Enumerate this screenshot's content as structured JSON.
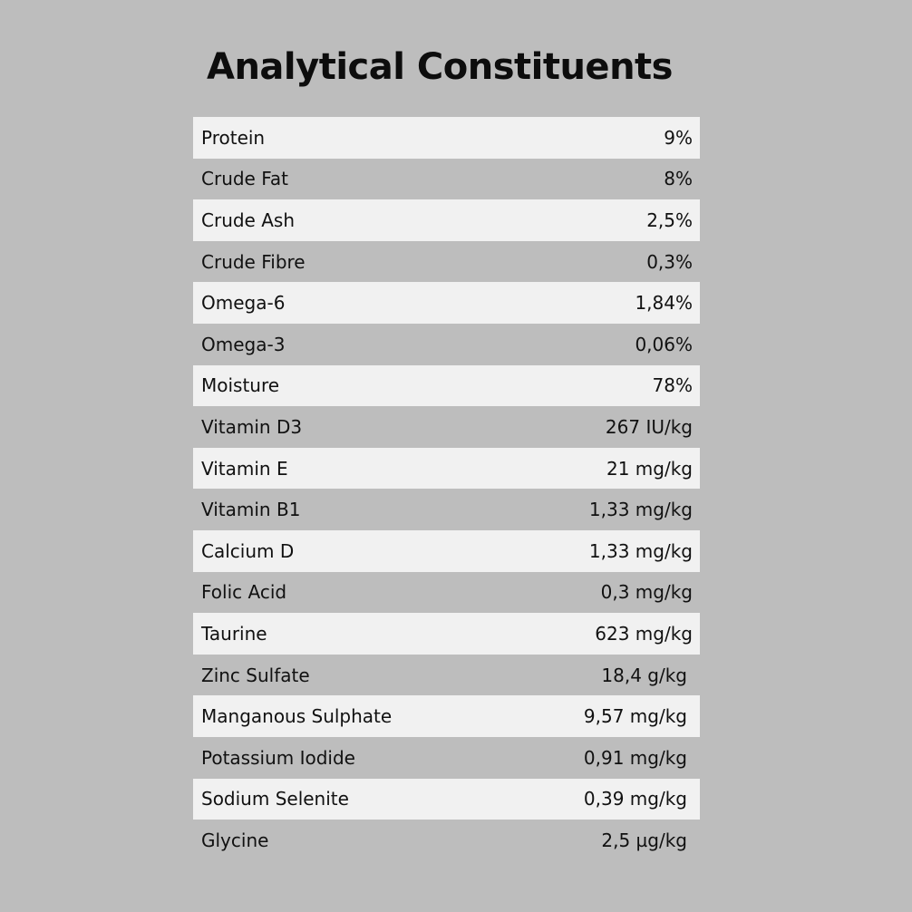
{
  "title": "Analytical Constituents",
  "rows": [
    {
      "label": "Protein",
      "value": "9%"
    },
    {
      "label": "Crude Fat",
      "value": "8%"
    },
    {
      "label": "Crude Ash",
      "value": "2,5%"
    },
    {
      "label": "Crude Fibre",
      "value": "0,3%"
    },
    {
      "label": "Omega-6",
      "value": "1,84%"
    },
    {
      "label": "Omega-3",
      "value": "0,06%"
    },
    {
      "label": "Moisture",
      "value": "78%"
    },
    {
      "label": "Vitamin D3",
      "value": "267 IU/kg"
    },
    {
      "label": "Vitamin E",
      "value": "21 mg/kg"
    },
    {
      "label": "Vitamin B1",
      "value": "1,33 mg/kg"
    },
    {
      "label": "Calcium D",
      "value": "1,33 mg/kg"
    },
    {
      "label": "Folic Acid",
      "value": "0,3 mg/kg"
    },
    {
      "label": "Taurine",
      "value": "623 mg/kg"
    },
    {
      "label": "Zinc Sulfate",
      "value": "18,4 g/kg"
    },
    {
      "label": "Manganous Sulphate",
      "value": "9,57 mg/kg"
    },
    {
      "label": "Potassium Iodide",
      "value": "0,91 mg/kg"
    },
    {
      "label": "Sodium Selenite",
      "value": "0,39 mg/kg"
    },
    {
      "label": "Glycine",
      "value": "2,5 µg/kg"
    }
  ],
  "colors": {
    "background": "#bdbdbd",
    "row_light": "#f1f1f1",
    "text": "#111111"
  }
}
